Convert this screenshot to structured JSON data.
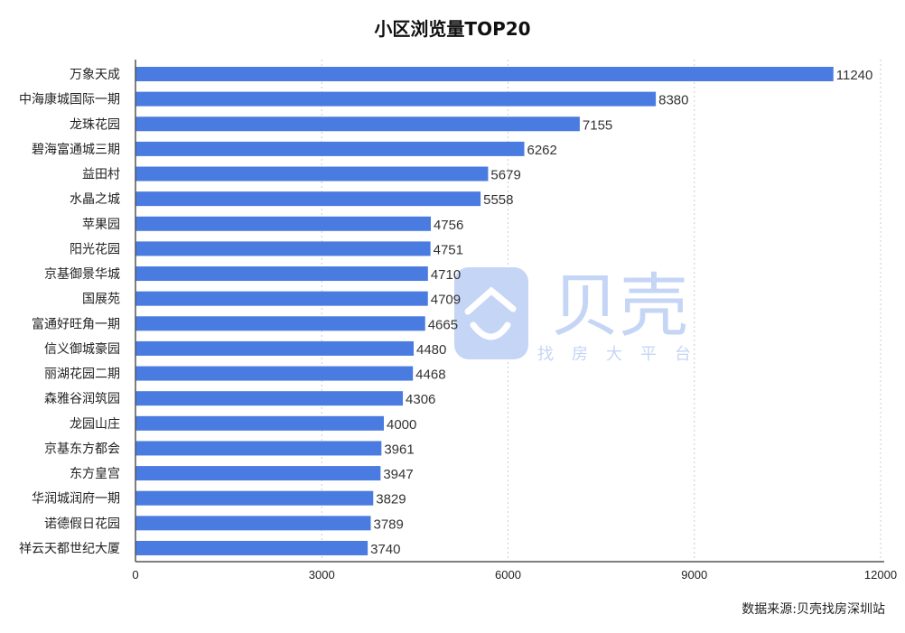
{
  "chart_data": {
    "type": "bar",
    "orientation": "horizontal",
    "title": "小区浏览量TOP20",
    "categories": [
      "万象天成",
      "中海康城国际一期",
      "龙珠花园",
      "碧海富通城三期",
      "益田村",
      "水晶之城",
      "苹果园",
      "阳光花园",
      "京基御景华城",
      "国展苑",
      "富通好旺角一期",
      "信义御城豪园",
      "丽湖花园二期",
      "森雅谷润筑园",
      "龙园山庄",
      "京基东方都会",
      "东方皇宫",
      "华润城润府一期",
      "诺德假日花园",
      "祥云天都世纪大厦"
    ],
    "values": [
      11240,
      8380,
      7155,
      6262,
      5679,
      5558,
      4756,
      4751,
      4710,
      4709,
      4665,
      4480,
      4468,
      4306,
      4000,
      3961,
      3947,
      3829,
      3789,
      3740
    ],
    "xlim": [
      0,
      12000
    ],
    "xticks": [
      0,
      3000,
      6000,
      9000,
      12000
    ],
    "grid": "vertical dotted",
    "bar_color": "#4a7be0",
    "xlabel": "",
    "ylabel": ""
  },
  "source": "数据来源:贝壳找房深圳站",
  "watermark": {
    "brand": "贝壳",
    "slogan": "找房大平台",
    "color": "#c5d5f5"
  }
}
